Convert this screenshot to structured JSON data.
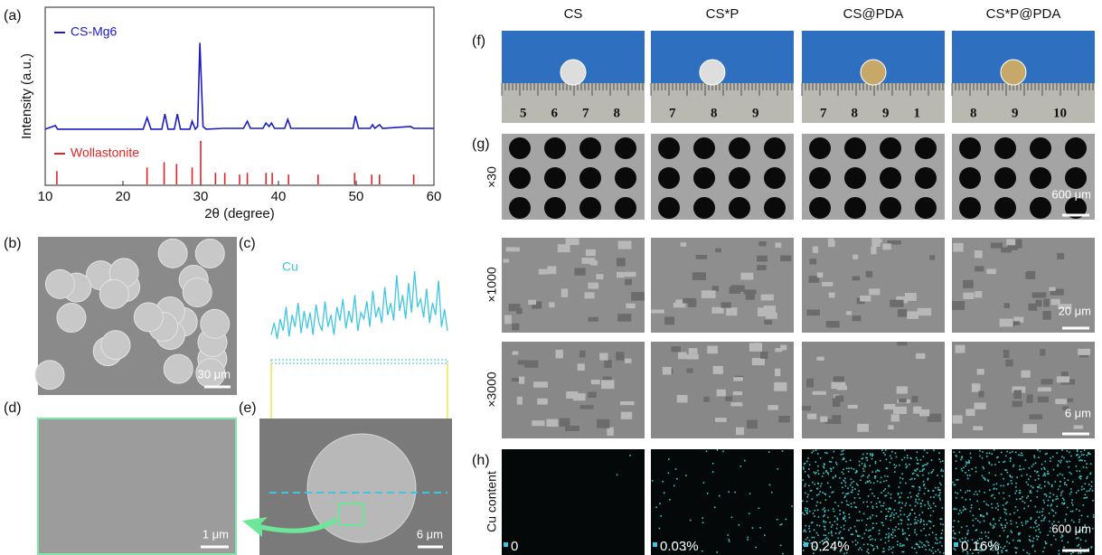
{
  "chart_data": [
    {
      "type": "line",
      "panel": "(a)",
      "xlabel": "2θ (degree)",
      "ylabel": "Intensity (a.u.)",
      "xlim": [
        10,
        60
      ],
      "xticks": [
        10,
        20,
        30,
        40,
        50,
        60
      ],
      "ylim": [
        0,
        100
      ],
      "series": [
        {
          "name": "CS-Mg6",
          "color": "#1c1cc4",
          "x": [
            10,
            11.3,
            11.6,
            15,
            20,
            22.6,
            23.1,
            23.6,
            25.0,
            25.4,
            25.8,
            26.6,
            27.0,
            27.4,
            28.6,
            28.9,
            29.3,
            29.6,
            29.9,
            30.3,
            30.7,
            33,
            35.5,
            36.0,
            36.4,
            38.0,
            38.4,
            38.8,
            39.1,
            39.5,
            40.8,
            41.2,
            41.6,
            45,
            49.6,
            49.9,
            50.3,
            51.8,
            52.1,
            52.4,
            53.0,
            53.4,
            57.0,
            57.4,
            60
          ],
          "values": [
            31.5,
            33.5,
            31.5,
            31.5,
            31.5,
            31.5,
            38,
            31.5,
            31.5,
            40,
            31.5,
            31.5,
            40,
            31.5,
            31.5,
            36,
            31.5,
            33,
            80,
            33,
            31.5,
            32,
            32,
            36,
            32,
            32,
            35,
            33,
            35,
            32,
            32,
            37,
            32,
            32,
            32,
            39,
            32,
            32,
            34,
            32,
            34,
            32,
            33,
            32,
            32
          ]
        },
        {
          "name": "Wollastonite",
          "color": "#e02424",
          "style": "stick",
          "x": [
            11.5,
            23.1,
            25.3,
            26.9,
            28.9,
            30.0,
            31.9,
            33.1,
            35.0,
            36.0,
            38.4,
            39.2,
            41.3,
            45.1,
            49.8,
            52.0,
            53.0,
            57.4
          ],
          "values": [
            8,
            10,
            13,
            12,
            10,
            25,
            7,
            7,
            6,
            7,
            7,
            7,
            6,
            6,
            7,
            6,
            6,
            6
          ]
        }
      ]
    },
    {
      "type": "trace",
      "panel": "(c)",
      "series": [
        {
          "name": "Cu",
          "color": "#3ec6e0",
          "values": [
            20,
            35,
            15,
            40,
            25,
            55,
            18,
            45,
            30,
            60,
            22,
            50,
            28,
            48,
            20,
            58,
            35,
            25,
            62,
            30,
            45,
            20,
            55,
            38,
            65,
            28,
            50,
            35,
            70,
            25,
            48,
            40,
            62,
            30,
            75,
            42,
            55,
            35,
            80,
            45,
            60,
            38,
            95,
            50,
            70,
            40,
            85,
            48,
            100,
            55,
            65,
            42,
            78,
            35,
            60,
            45,
            88,
            30,
            52,
            25
          ]
        }
      ]
    }
  ],
  "figure": {
    "panels": {
      "b": "(b)",
      "d": "(d)",
      "e": "(e)",
      "f": "(f)",
      "g": "(g)",
      "h": "(h)"
    },
    "columns": [
      "CS",
      "CS*P",
      "CS@PDA",
      "CS*P@PDA"
    ],
    "rows": [
      "×30",
      "×1000",
      "×3000",
      "Cu content"
    ],
    "scale_bars": {
      "b": "30 μm",
      "d": "1 μm",
      "e": "6 μm",
      "g30": "600 μm",
      "g1000": "20 μm",
      "g3000": "6 μm",
      "h": "600 μm"
    },
    "ruler_labels": [
      [
        "5",
        "6",
        "7",
        "8"
      ],
      [
        "7",
        "8",
        "9"
      ],
      [
        "7",
        "8",
        "9",
        "1"
      ],
      [
        "8",
        "9",
        "10"
      ]
    ],
    "cu_content": [
      "0",
      "0.03%",
      "0.24%",
      "0.16%"
    ]
  }
}
